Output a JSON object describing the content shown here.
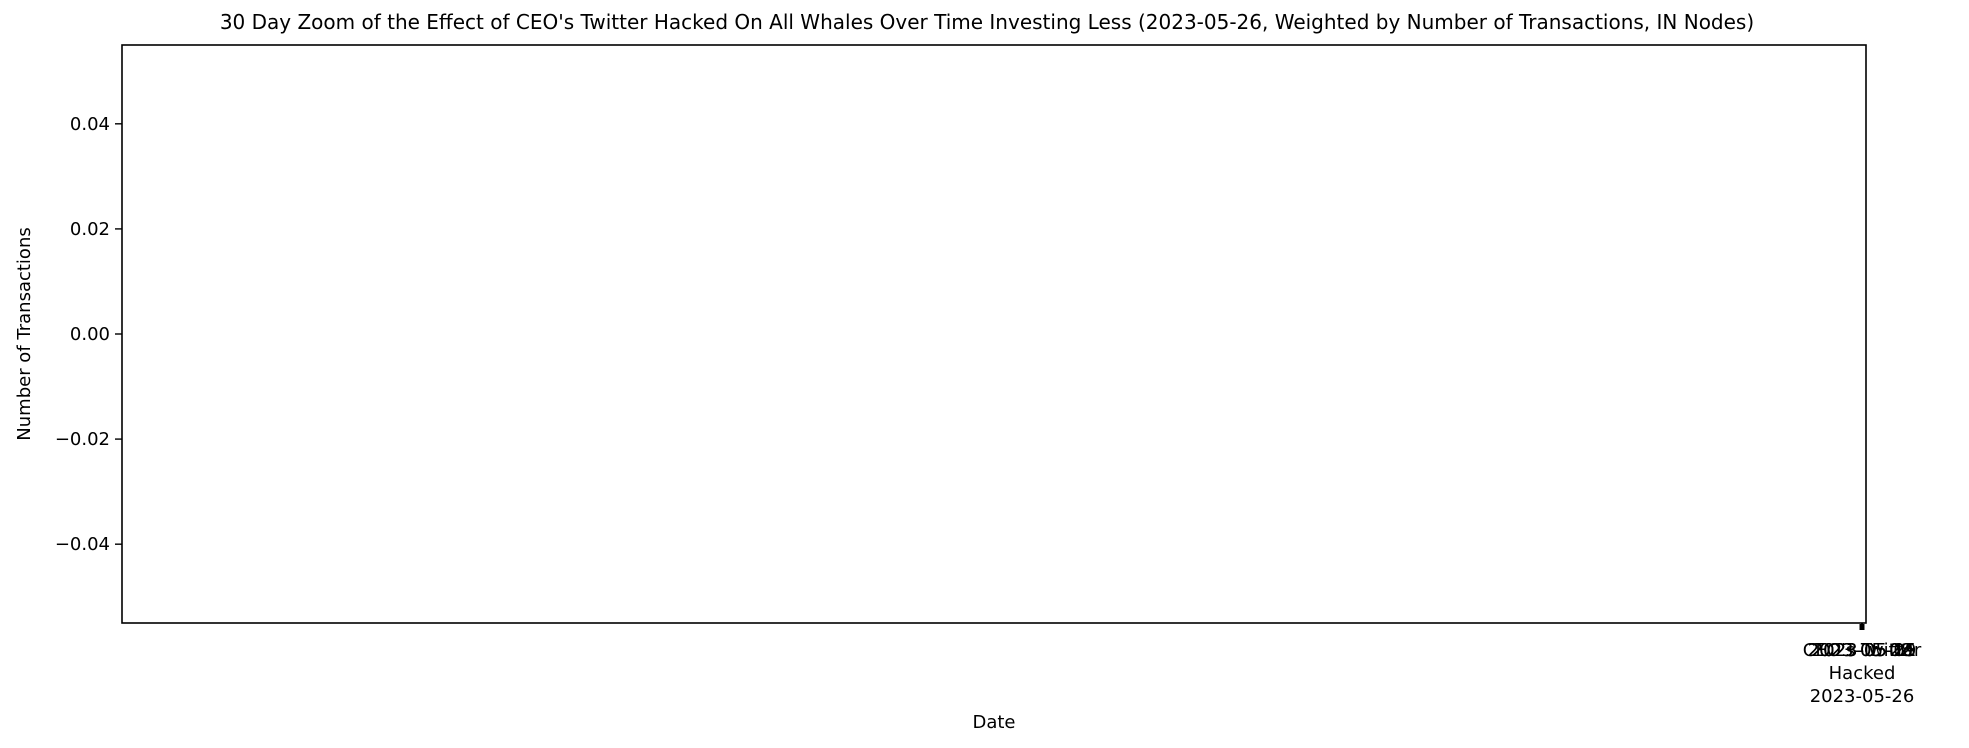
{
  "chart_data": {
    "type": "line",
    "title": "30 Day Zoom of the Effect of CEO's Twitter Hacked On All Whales Over Time Investing Less (2023-05-26, Weighted by Number of Transactions, IN Nodes)",
    "xlabel": "Date",
    "ylabel": "Number of Transactions",
    "ylim": [
      -0.055,
      0.055
    ],
    "yticks": [
      0.04,
      0.02,
      0.0,
      -0.02,
      -0.04
    ],
    "ytick_labels": [
      "0.04",
      "0.02",
      "0.00",
      "−0.02",
      "−0.04"
    ],
    "xticks": [
      "2023-05-01",
      "2023-05-08",
      "2023-05-15",
      "2023-05-22",
      "2023-05-29"
    ],
    "event": {
      "name": "CEO's Twitter Hacked",
      "date": "2023-05-26",
      "label_lines": [
        "CEO's Twitter",
        "Hacked",
        "2023-05-26"
      ]
    },
    "series": [],
    "grid": false,
    "legend": "none"
  }
}
